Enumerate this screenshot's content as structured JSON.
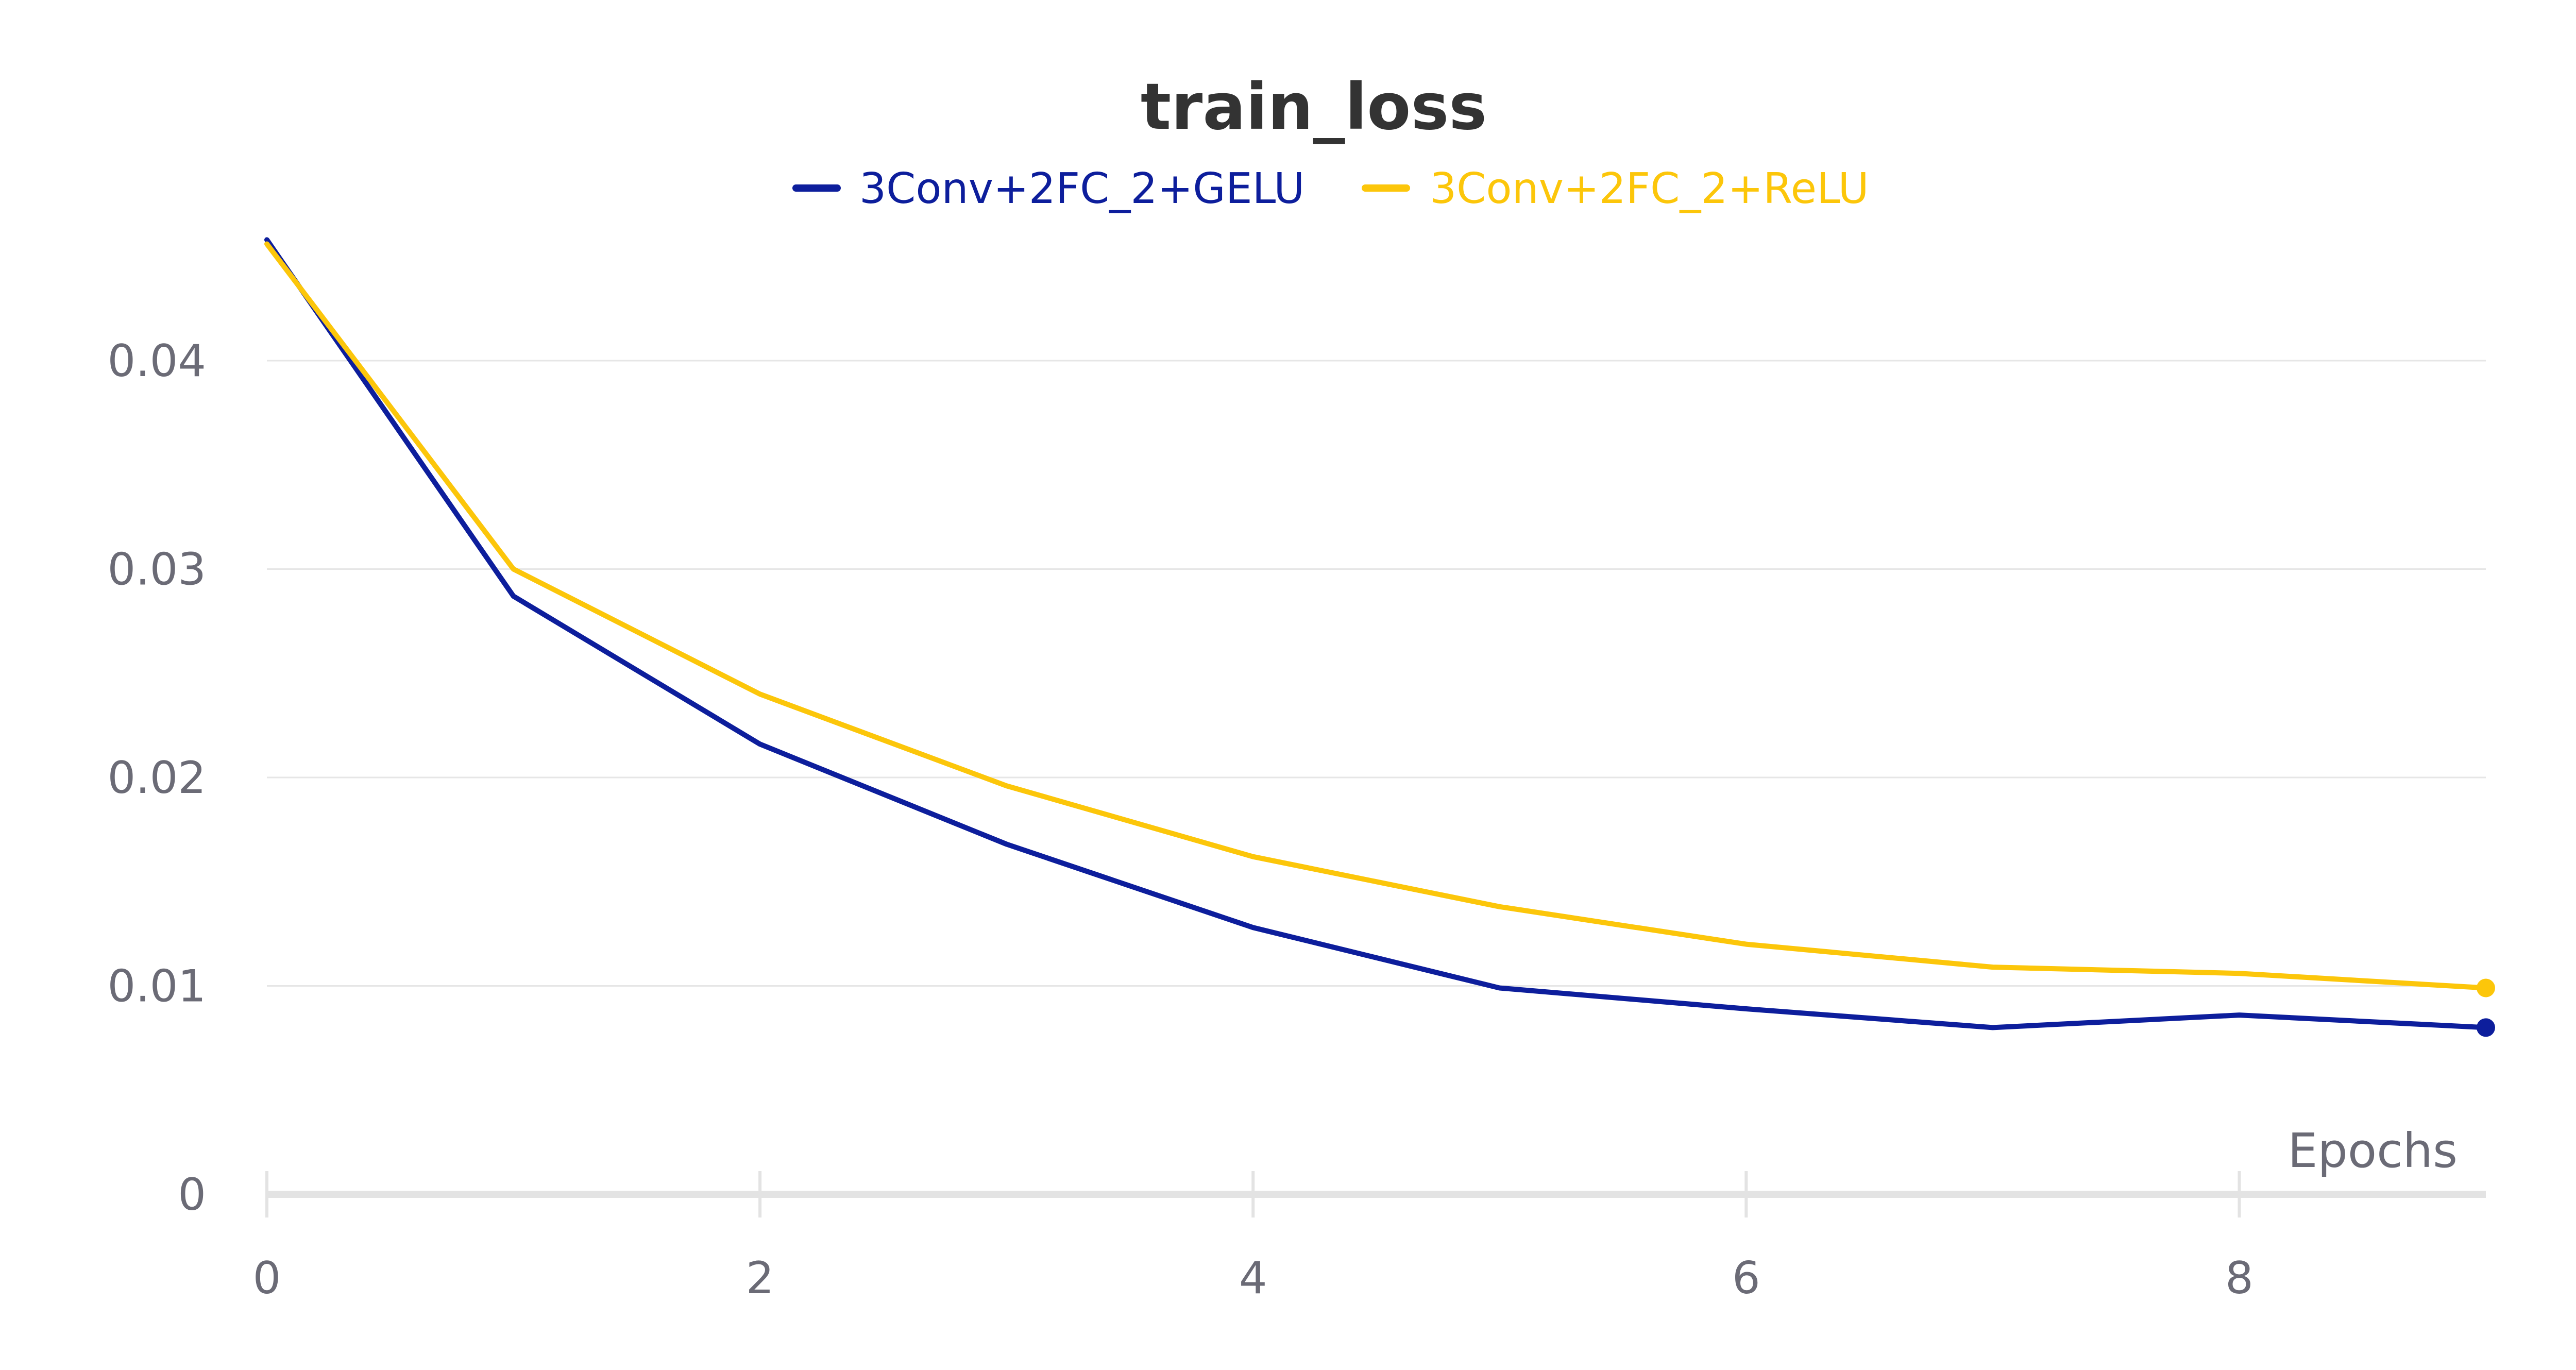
{
  "chart_data": {
    "type": "line",
    "title": "train_loss",
    "xlabel": "Epochs",
    "ylabel": "",
    "x": [
      0,
      1,
      2,
      3,
      4,
      5,
      6,
      7,
      8,
      9
    ],
    "xlim": [
      0,
      9
    ],
    "ylim": [
      0,
      0.04
    ],
    "x_ticks": [
      {
        "value": 0,
        "label": "0"
      },
      {
        "value": 2,
        "label": "2"
      },
      {
        "value": 4,
        "label": "4"
      },
      {
        "value": 6,
        "label": "6"
      },
      {
        "value": 8,
        "label": "8"
      }
    ],
    "y_ticks": [
      {
        "value": 0,
        "label": "0"
      },
      {
        "value": 0.01,
        "label": "0.01"
      },
      {
        "value": 0.02,
        "label": "0.02"
      },
      {
        "value": 0.03,
        "label": "0.03"
      },
      {
        "value": 0.04,
        "label": "0.04"
      }
    ],
    "grid": true,
    "legend_position": "top-center",
    "series": [
      {
        "name": "3Conv+2FC_2+GELU",
        "color": "#0d1e9c",
        "values": [
          0.0458,
          0.0287,
          0.0216,
          0.0168,
          0.0128,
          0.0099,
          0.0089,
          0.008,
          0.0086,
          0.008
        ]
      },
      {
        "name": "3Conv+2FC_2+ReLU",
        "color": "#fcc60a",
        "values": [
          0.0456,
          0.03,
          0.024,
          0.0196,
          0.0162,
          0.0138,
          0.012,
          0.0109,
          0.0106,
          0.0099
        ]
      }
    ]
  }
}
